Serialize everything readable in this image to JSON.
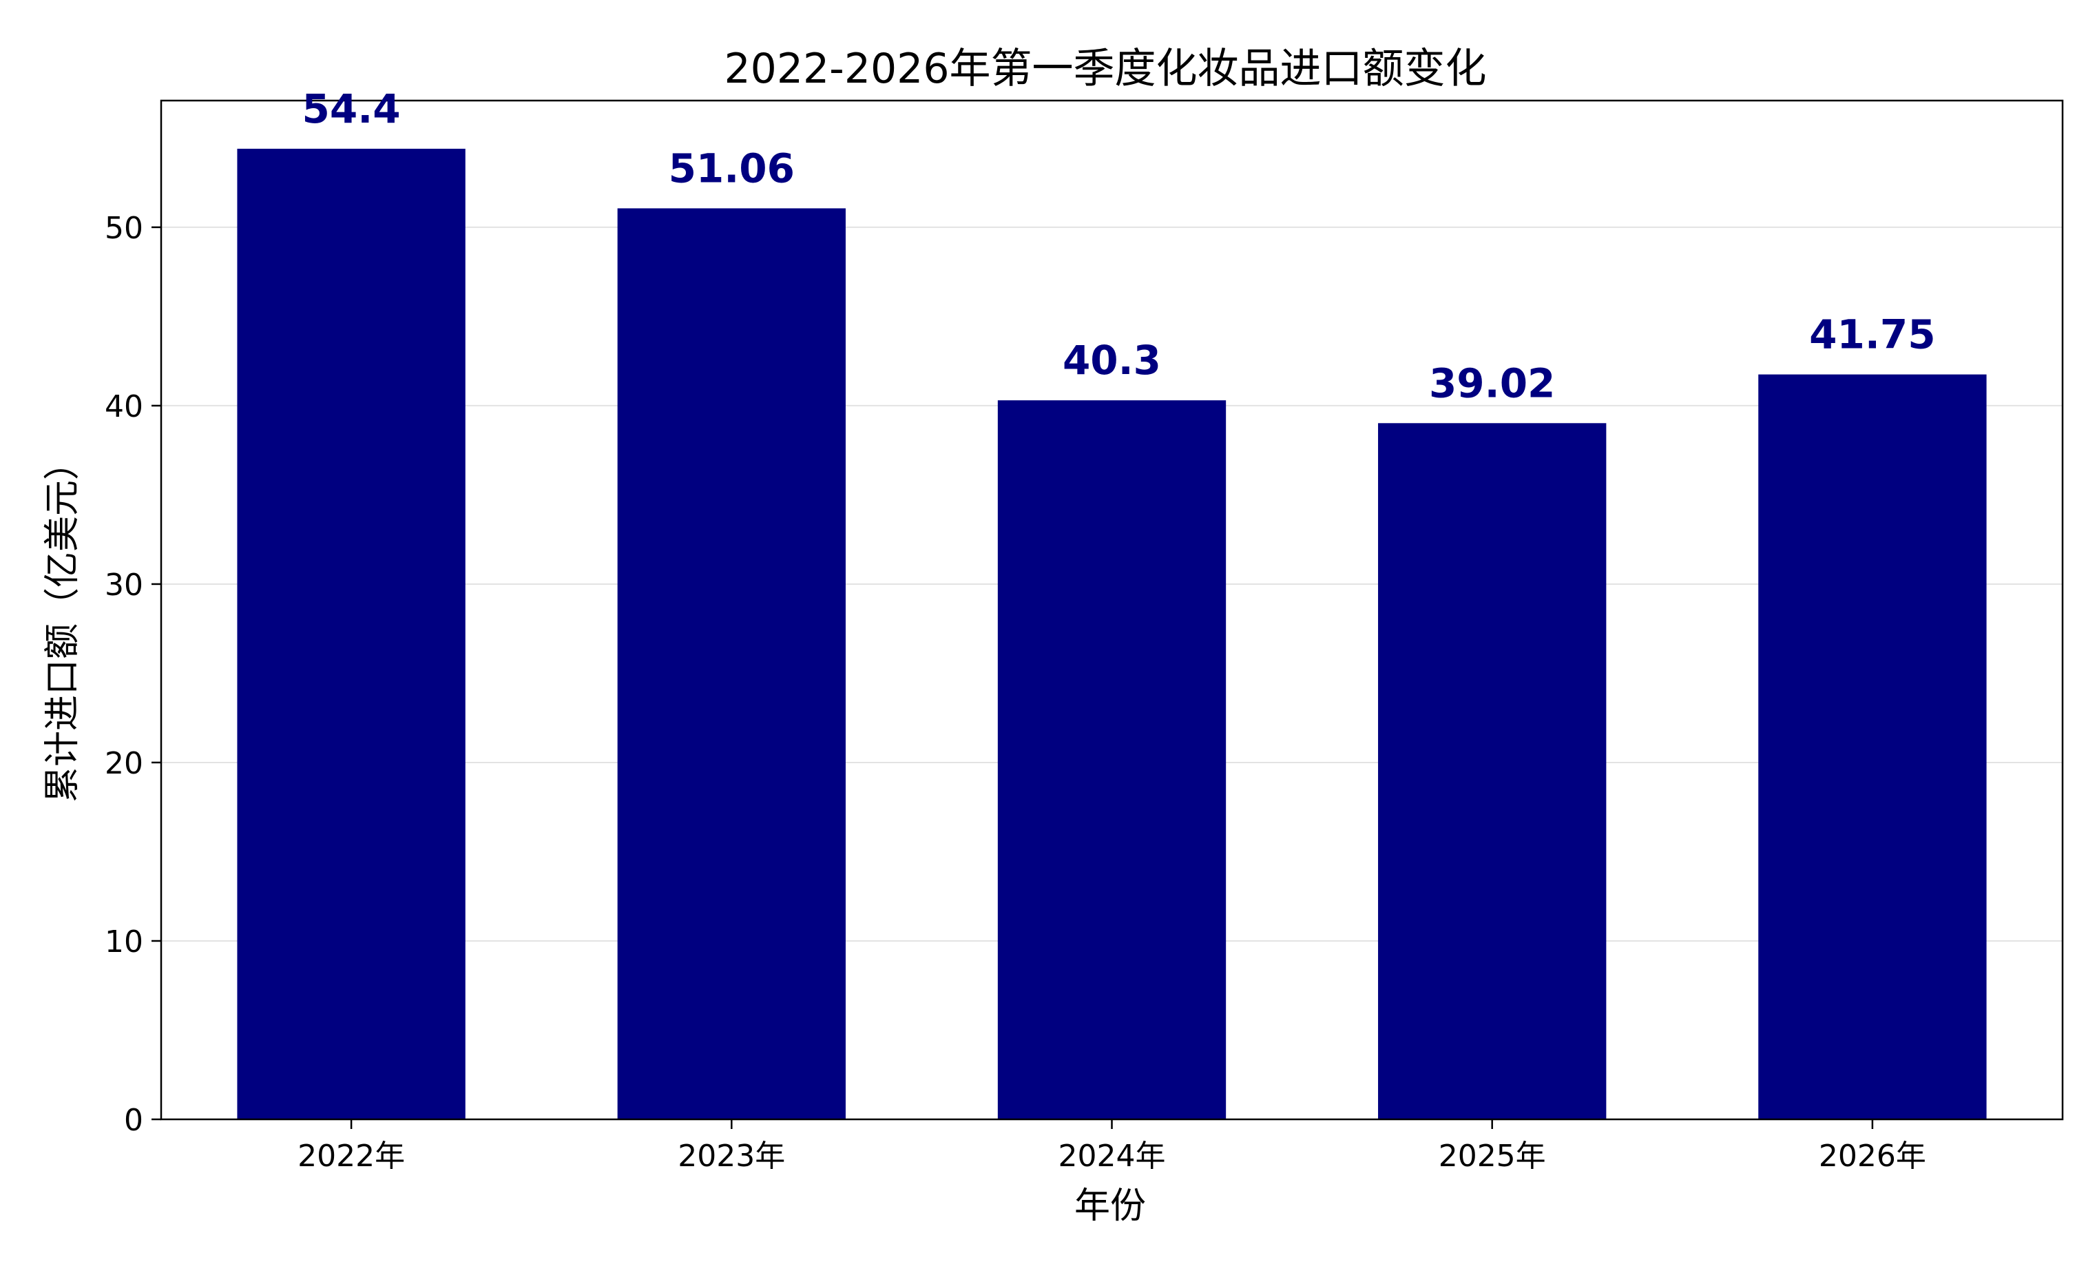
{
  "chart_data": {
    "type": "bar",
    "title": "2022-2026年第一季度化妆品进口额变化",
    "xlabel": "年份",
    "ylabel": "累计进口额（亿美元）",
    "categories": [
      "2022年",
      "2023年",
      "2024年",
      "2025年",
      "2026年"
    ],
    "values": [
      54.4,
      51.06,
      40.3,
      39.02,
      41.75
    ],
    "value_labels": [
      "54.4",
      "51.06",
      "40.3",
      "39.02",
      "41.75"
    ],
    "ylim": [
      0,
      57.1
    ],
    "yticks": [
      0,
      10,
      20,
      30,
      40,
      50
    ],
    "ytick_labels": [
      "0",
      "10",
      "20",
      "30",
      "40",
      "50"
    ],
    "grid": {
      "y": true,
      "x": false
    },
    "bar_color": "#000080",
    "label_color": "#000080",
    "legend": "none"
  }
}
